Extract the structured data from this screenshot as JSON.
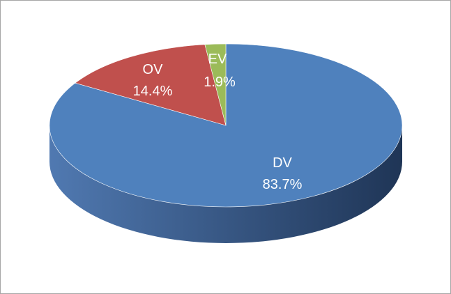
{
  "chart_data": {
    "type": "pie",
    "style": "3d",
    "title": "",
    "slices": [
      {
        "label": "DV",
        "value": 83.7,
        "percent_label": "83.7%",
        "color": "#4f81bd",
        "side_dark": "#1f3556",
        "side_light": "#5079b1"
      },
      {
        "label": "OV",
        "value": 14.4,
        "percent_label": "14.4%",
        "color": "#c0504d",
        "side_dark": "#7a2b29",
        "side_light": "#a84542"
      },
      {
        "label": "EV",
        "value": 1.9,
        "percent_label": "1.9%",
        "color": "#9bbb59",
        "side_dark": "#5c7331",
        "side_light": "#86a64a"
      }
    ],
    "legend": "none"
  }
}
